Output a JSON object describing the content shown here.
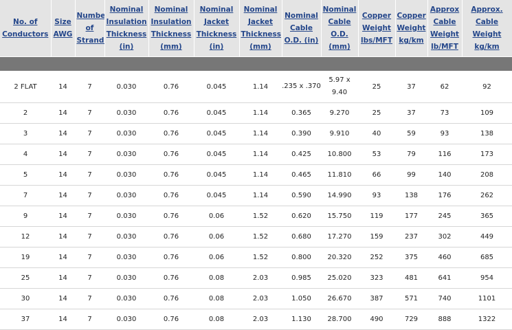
{
  "table": {
    "headers": [
      "No. of Conductors",
      "Size AWG",
      "Number of Strands",
      "Nominal Insulation Thickness (in)",
      "Nominal Insulation Thickness (mm)",
      "Nominal Jacket Thickness (in)",
      "Nominal Jacket Thickness (mm)",
      "Nominal Cable O.D. (in)",
      "Nominal Cable O.D. (mm)",
      "Copper Weight lbs/MFT",
      "Copper Weight kg/km",
      "Approx Cable Weight lb/MFT",
      "Approx. Cable Weight kg/km"
    ],
    "rows": [
      [
        "2 FLAT",
        "14",
        "7",
        "0.030",
        "0.76",
        "0.045",
        "1.14",
        ".235 x .370",
        "5.97 x 9.40",
        "25",
        "37",
        "62",
        "92"
      ],
      [
        "2",
        "14",
        "7",
        "0.030",
        "0.76",
        "0.045",
        "1.14",
        "0.365",
        "9.270",
        "25",
        "37",
        "73",
        "109"
      ],
      [
        "3",
        "14",
        "7",
        "0.030",
        "0.76",
        "0.045",
        "1.14",
        "0.390",
        "9.910",
        "40",
        "59",
        "93",
        "138"
      ],
      [
        "4",
        "14",
        "7",
        "0.030",
        "0.76",
        "0.045",
        "1.14",
        "0.425",
        "10.800",
        "53",
        "79",
        "116",
        "173"
      ],
      [
        "5",
        "14",
        "7",
        "0.030",
        "0.76",
        "0.045",
        "1.14",
        "0.465",
        "11.810",
        "66",
        "99",
        "140",
        "208"
      ],
      [
        "7",
        "14",
        "7",
        "0.030",
        "0.76",
        "0.045",
        "1.14",
        "0.590",
        "14.990",
        "93",
        "138",
        "176",
        "262"
      ],
      [
        "9",
        "14",
        "7",
        "0.030",
        "0.76",
        "0.06",
        "1.52",
        "0.620",
        "15.750",
        "119",
        "177",
        "245",
        "365"
      ],
      [
        "12",
        "14",
        "7",
        "0.030",
        "0.76",
        "0.06",
        "1.52",
        "0.680",
        "17.270",
        "159",
        "237",
        "302",
        "449"
      ],
      [
        "19",
        "14",
        "7",
        "0.030",
        "0.76",
        "0.06",
        "1.52",
        "0.800",
        "20.320",
        "252",
        "375",
        "460",
        "685"
      ],
      [
        "25",
        "14",
        "7",
        "0.030",
        "0.76",
        "0.08",
        "2.03",
        "0.985",
        "25.020",
        "323",
        "481",
        "641",
        "954"
      ],
      [
        "30",
        "14",
        "7",
        "0.030",
        "0.76",
        "0.08",
        "2.03",
        "1.050",
        "26.670",
        "387",
        "571",
        "740",
        "1101"
      ],
      [
        "37",
        "14",
        "7",
        "0.030",
        "0.76",
        "0.08",
        "2.03",
        "1.130",
        "28.700",
        "490",
        "729",
        "888",
        "1322"
      ]
    ]
  },
  "colors": {
    "header_text": "#24468a",
    "header_bg": "#e4e4e4",
    "separator_bar": "#777777"
  }
}
